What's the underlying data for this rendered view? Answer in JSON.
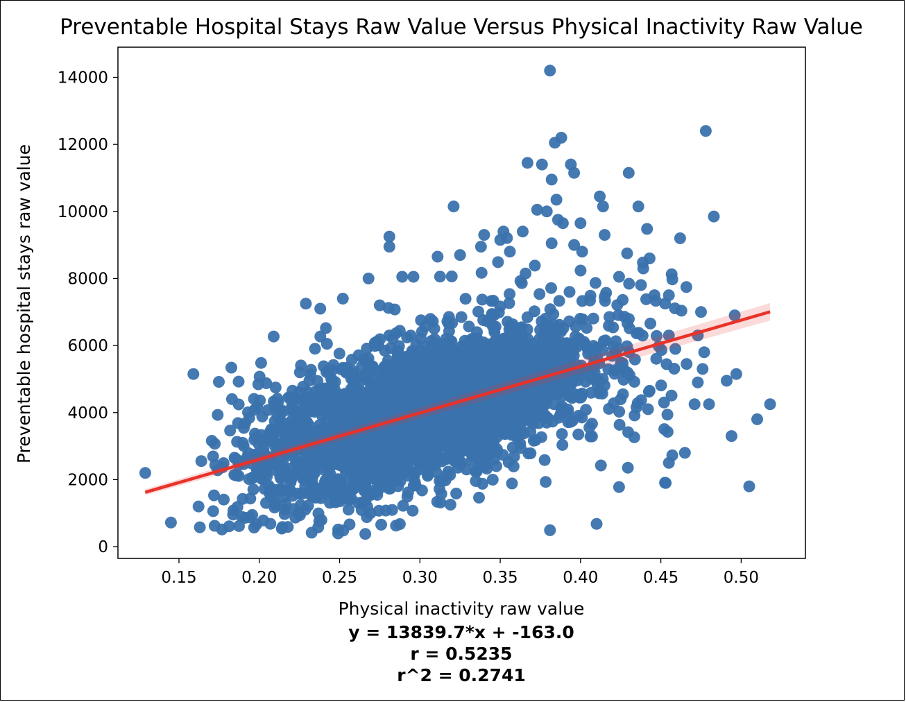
{
  "chart_data": {
    "type": "scatter",
    "title": "Preventable Hospital Stays Raw Value Versus Physical Inactivity Raw Value",
    "xlabel": "Physical inactivity raw value",
    "ylabel": "Preventable hospital stays raw value",
    "xlim": [
      0.112,
      0.54
    ],
    "ylim": [
      -350,
      14900
    ],
    "xticks": [
      0.15,
      0.2,
      0.25,
      0.3,
      0.35,
      0.4,
      0.45,
      0.5
    ],
    "xtick_labels": [
      "0.15",
      "0.20",
      "0.25",
      "0.30",
      "0.35",
      "0.40",
      "0.45",
      "0.50"
    ],
    "yticks": [
      0,
      2000,
      4000,
      6000,
      8000,
      10000,
      12000,
      14000
    ],
    "ytick_labels": [
      "0",
      "2000",
      "4000",
      "6000",
      "8000",
      "10000",
      "12000",
      "14000"
    ],
    "grid": false,
    "point_color": "#3a72ad",
    "line_color": "#e8322a",
    "regression": {
      "slope": 13839.7,
      "intercept": -163.0,
      "x_range": [
        0.129,
        0.518
      ],
      "r": 0.5235,
      "r2": 0.2741
    },
    "annotations": [
      "y = 13839.7*x + -163.0",
      "r = 0.5235",
      "r^2 = 0.2741"
    ],
    "notable_points": [
      {
        "x": 0.381,
        "y": 14200
      },
      {
        "x": 0.478,
        "y": 12400
      },
      {
        "x": 0.388,
        "y": 12200
      },
      {
        "x": 0.384,
        "y": 12050
      },
      {
        "x": 0.43,
        "y": 11150
      },
      {
        "x": 0.367,
        "y": 11450
      },
      {
        "x": 0.376,
        "y": 11400
      },
      {
        "x": 0.394,
        "y": 11400
      },
      {
        "x": 0.396,
        "y": 11150
      },
      {
        "x": 0.382,
        "y": 10950
      },
      {
        "x": 0.412,
        "y": 10450
      },
      {
        "x": 0.414,
        "y": 10150
      },
      {
        "x": 0.321,
        "y": 10150
      },
      {
        "x": 0.385,
        "y": 10350
      },
      {
        "x": 0.373,
        "y": 10050
      },
      {
        "x": 0.379,
        "y": 10000
      },
      {
        "x": 0.436,
        "y": 10150
      },
      {
        "x": 0.483,
        "y": 9850
      },
      {
        "x": 0.386,
        "y": 9750
      },
      {
        "x": 0.389,
        "y": 9650
      },
      {
        "x": 0.4,
        "y": 9650
      },
      {
        "x": 0.415,
        "y": 9300
      },
      {
        "x": 0.462,
        "y": 9200
      },
      {
        "x": 0.281,
        "y": 9250
      },
      {
        "x": 0.281,
        "y": 8950
      },
      {
        "x": 0.34,
        "y": 9300
      },
      {
        "x": 0.352,
        "y": 9400
      },
      {
        "x": 0.364,
        "y": 9400
      },
      {
        "x": 0.35,
        "y": 9150
      },
      {
        "x": 0.382,
        "y": 9050
      },
      {
        "x": 0.396,
        "y": 9000
      },
      {
        "x": 0.338,
        "y": 8950
      },
      {
        "x": 0.356,
        "y": 8800
      },
      {
        "x": 0.401,
        "y": 8800
      },
      {
        "x": 0.429,
        "y": 8750
      },
      {
        "x": 0.443,
        "y": 8600
      },
      {
        "x": 0.311,
        "y": 8650
      },
      {
        "x": 0.325,
        "y": 8700
      },
      {
        "x": 0.268,
        "y": 8000
      },
      {
        "x": 0.289,
        "y": 8050
      },
      {
        "x": 0.296,
        "y": 8050
      },
      {
        "x": 0.424,
        "y": 8050
      },
      {
        "x": 0.415,
        "y": 7450
      },
      {
        "x": 0.446,
        "y": 7500
      },
      {
        "x": 0.455,
        "y": 7500
      },
      {
        "x": 0.475,
        "y": 7000
      },
      {
        "x": 0.496,
        "y": 6900
      },
      {
        "x": 0.229,
        "y": 7250
      },
      {
        "x": 0.252,
        "y": 7400
      },
      {
        "x": 0.238,
        "y": 7100
      },
      {
        "x": 0.275,
        "y": 7200
      },
      {
        "x": 0.129,
        "y": 2200
      },
      {
        "x": 0.145,
        "y": 720
      },
      {
        "x": 0.163,
        "y": 580
      },
      {
        "x": 0.159,
        "y": 5150
      },
      {
        "x": 0.183,
        "y": 4400
      },
      {
        "x": 0.266,
        "y": 380
      },
      {
        "x": 0.381,
        "y": 490
      },
      {
        "x": 0.41,
        "y": 680
      },
      {
        "x": 0.424,
        "y": 1780
      },
      {
        "x": 0.453,
        "y": 1900
      },
      {
        "x": 0.455,
        "y": 2500
      },
      {
        "x": 0.465,
        "y": 2800
      },
      {
        "x": 0.494,
        "y": 3300
      },
      {
        "x": 0.505,
        "y": 1800
      },
      {
        "x": 0.51,
        "y": 3800
      },
      {
        "x": 0.518,
        "y": 4250
      },
      {
        "x": 0.491,
        "y": 4950
      },
      {
        "x": 0.497,
        "y": 5150
      },
      {
        "x": 0.476,
        "y": 5300
      },
      {
        "x": 0.473,
        "y": 4900
      },
      {
        "x": 0.471,
        "y": 4250
      },
      {
        "x": 0.48,
        "y": 4250
      },
      {
        "x": 0.452,
        "y": 4300
      },
      {
        "x": 0.442,
        "y": 4100
      },
      {
        "x": 0.443,
        "y": 4650
      },
      {
        "x": 0.466,
        "y": 5450
      },
      {
        "x": 0.459,
        "y": 5900
      },
      {
        "x": 0.477,
        "y": 5800
      },
      {
        "x": 0.473,
        "y": 6300
      },
      {
        "x": 0.455,
        "y": 6300
      }
    ]
  }
}
